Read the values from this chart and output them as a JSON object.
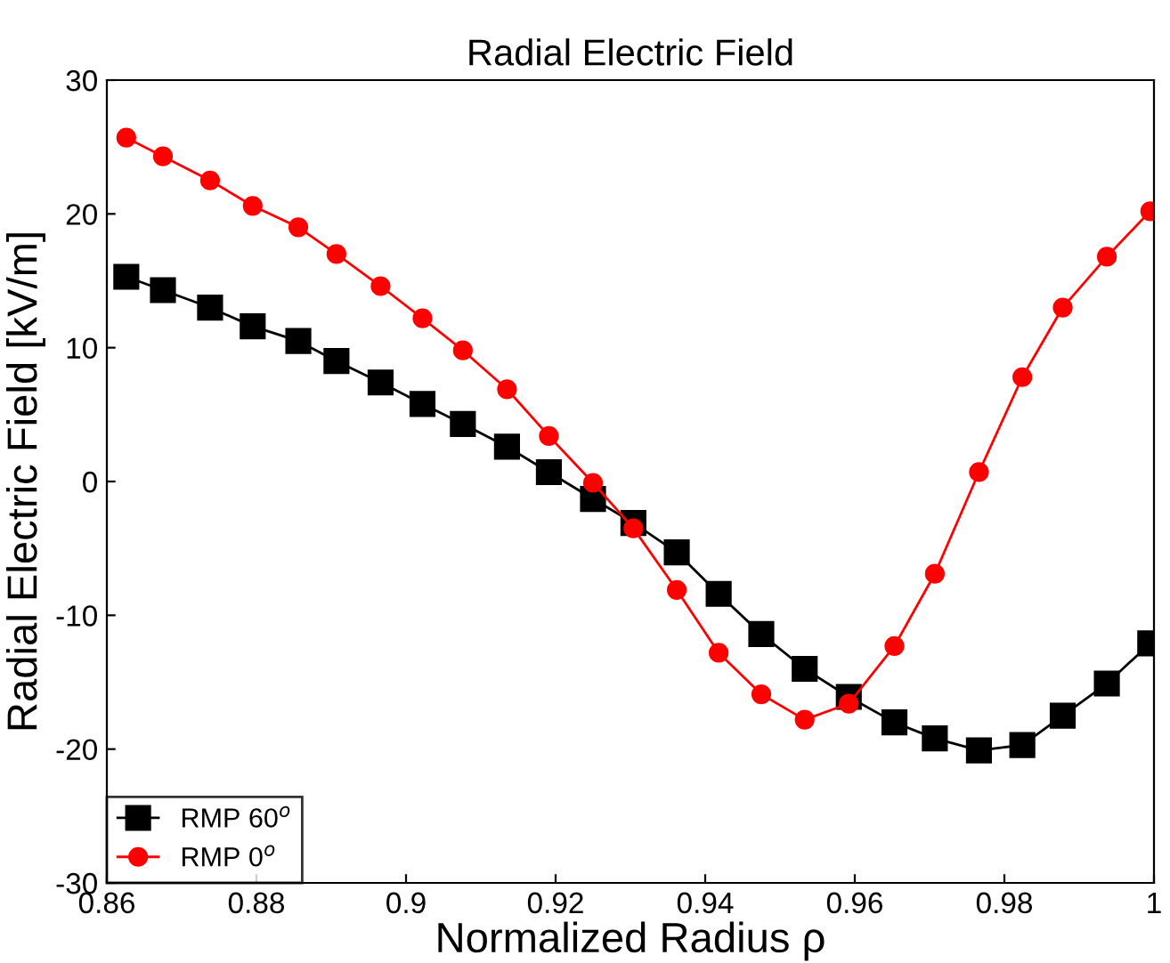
{
  "chart_data": {
    "type": "line",
    "title": "Radial Electric Field",
    "xlabel": "Normalized Radius ρ",
    "ylabel": "Radial Electric Field [kV/m]",
    "x": [
      0.8626,
      0.8675,
      0.8738,
      0.8795,
      0.8856,
      0.8907,
      0.8966,
      0.9022,
      0.9076,
      0.9135,
      0.9191,
      0.925,
      0.9304,
      0.9362,
      0.9418,
      0.9475,
      0.9533,
      0.9592,
      0.9653,
      0.9707,
      0.9766,
      0.9824,
      0.9878,
      0.9937,
      0.9995
    ],
    "series": [
      {
        "name": "RMP 60$^{o}$",
        "color": "#000000",
        "marker": "square",
        "values": [
          15.3,
          14.3,
          13.0,
          11.6,
          10.5,
          9.0,
          7.4,
          5.8,
          4.3,
          2.6,
          0.7,
          -1.3,
          -3.1,
          -5.3,
          -8.4,
          -11.4,
          -14.0,
          -16.1,
          -18.0,
          -19.2,
          -20.1,
          -19.7,
          -17.5,
          -15.1,
          -12.1
        ]
      },
      {
        "name": "RMP 0$^{o}$",
        "color": "#ff0000",
        "marker": "circle",
        "values": [
          25.7,
          24.3,
          22.5,
          20.6,
          19.0,
          17.0,
          14.6,
          12.2,
          9.8,
          6.9,
          3.4,
          -0.1,
          -3.5,
          -8.1,
          -12.8,
          -15.9,
          -17.8,
          -16.6,
          -12.3,
          -6.9,
          0.7,
          7.8,
          13.0,
          16.8,
          20.2
        ]
      }
    ],
    "xlim": [
      0.86,
      1
    ],
    "xticks": [
      0.86,
      0.88,
      0.9,
      0.92,
      0.94,
      0.96,
      0.98,
      1
    ],
    "ylim": [
      -30,
      30
    ],
    "yticks": [
      -30,
      -20,
      -10,
      0,
      10,
      20,
      30
    ],
    "grid": false,
    "legend": "bottom left",
    "line_style": "solid"
  }
}
